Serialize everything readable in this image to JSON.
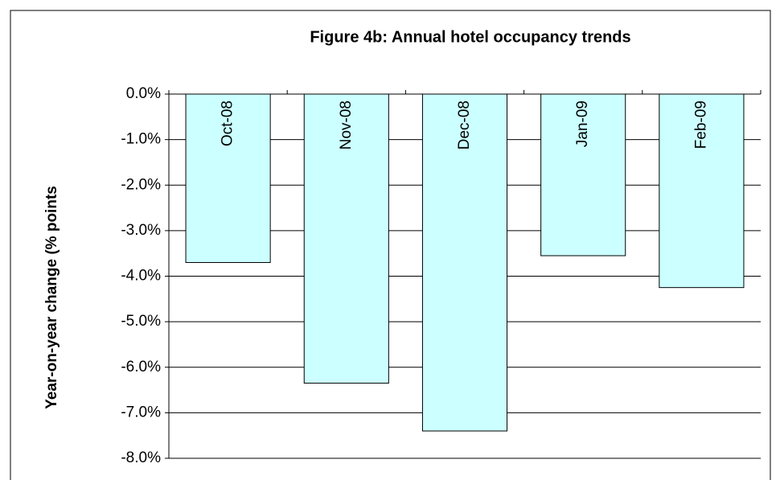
{
  "chart_data": {
    "type": "bar",
    "title": "Figure 4b: Annual hotel occupancy trends",
    "y_label": "Year-on-year change (% points",
    "categories": [
      "Oct-08",
      "Nov-08",
      "Dec-08",
      "Jan-09",
      "Feb-09"
    ],
    "values": [
      -3.7,
      -6.35,
      -7.4,
      -3.55,
      -4.25
    ],
    "color": "#ccffff",
    "ylim": [
      -8,
      0
    ],
    "yticks": [
      {
        "value": 0,
        "label": "0.0%"
      },
      {
        "value": -1,
        "label": "-1.0%"
      },
      {
        "value": -2,
        "label": "-2.0%"
      },
      {
        "value": -3,
        "label": "-3.0%"
      },
      {
        "value": -4,
        "label": "-4.0%"
      },
      {
        "value": -5,
        "label": "-5.0%"
      },
      {
        "value": -6,
        "label": "-6.0%"
      },
      {
        "value": -7,
        "label": "-7.0%"
      },
      {
        "value": -8,
        "label": "-8.0%"
      }
    ],
    "grid": true
  }
}
